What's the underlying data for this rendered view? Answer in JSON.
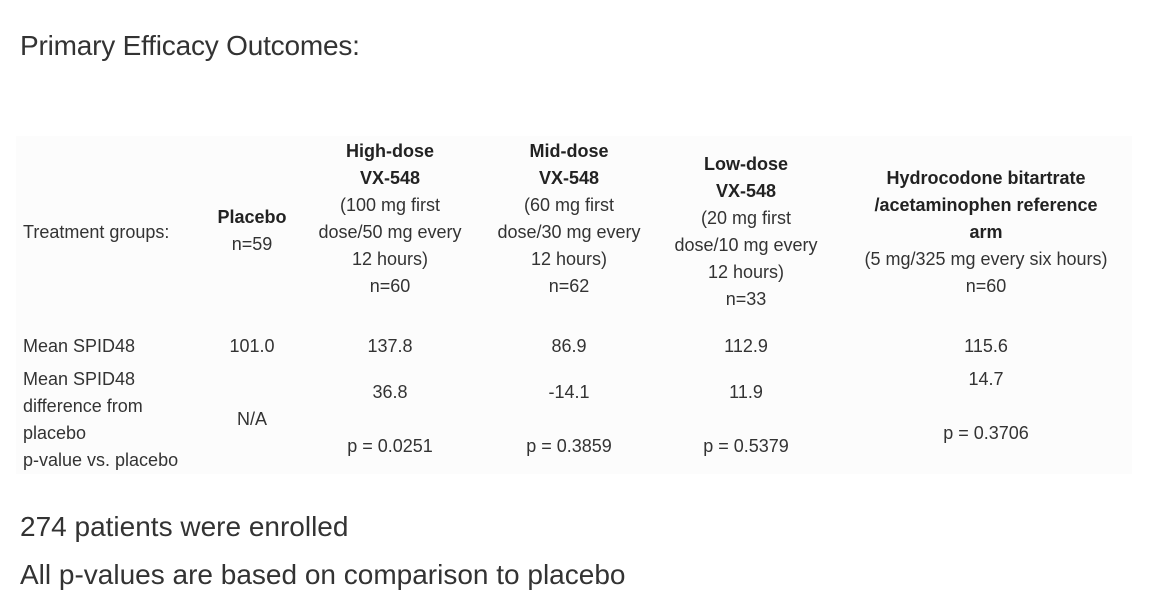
{
  "title": "Primary Efficacy Outcomes:",
  "table": {
    "row_header": "Treatment groups:",
    "columns": [
      {
        "name_lines": [
          "Placebo"
        ],
        "detail_lines": [],
        "n": "n=59"
      },
      {
        "name_lines": [
          "High-dose",
          "VX-548"
        ],
        "detail_lines": [
          "(100 mg first",
          "dose/50 mg every",
          "12 hours)"
        ],
        "n": "n=60"
      },
      {
        "name_lines": [
          "Mid-dose",
          "VX-548"
        ],
        "detail_lines": [
          "(60 mg first",
          "dose/30 mg every",
          "12 hours)"
        ],
        "n": "n=62"
      },
      {
        "name_lines": [
          "Low-dose",
          "VX-548"
        ],
        "detail_lines": [
          "(20 mg first",
          "dose/10 mg every",
          "12 hours)"
        ],
        "n": "n=33"
      },
      {
        "name_lines": [
          "Hydrocodone bitartrate",
          "/acetaminophen reference",
          "arm"
        ],
        "detail_lines": [
          "(5 mg/325 mg every six hours)"
        ],
        "n": "n=60"
      }
    ],
    "rows": {
      "mean_label": "Mean SPID48",
      "mean_values": [
        "101.0",
        "137.8",
        "86.9",
        "112.9",
        "115.6"
      ],
      "diff_label_lines": [
        "Mean SPID48",
        "difference from",
        "placebo",
        "p-value vs. placebo"
      ],
      "diff_values": [
        "N/A",
        "36.8",
        "-14.1",
        "11.9",
        "14.7"
      ],
      "p_values": [
        "",
        "p = 0.0251",
        "p = 0.3859",
        "p = 0.5379",
        "p = 0.3706"
      ]
    }
  },
  "footer": {
    "line1": "274 patients were enrolled",
    "line2": "All p-values are based on comparison to placebo"
  }
}
